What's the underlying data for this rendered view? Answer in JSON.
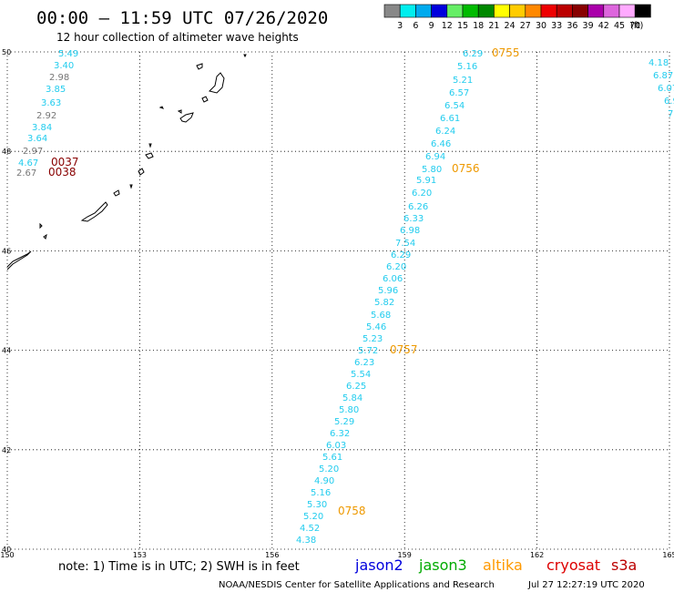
{
  "header": {
    "title": "00:00 – 11:59 UTC 07/26/2020",
    "subtitle": "12 hour collection of altimeter wave heights"
  },
  "legend": {
    "unit": "(ft)",
    "items": [
      {
        "label": "3",
        "color": "#888888"
      },
      {
        "label": "6",
        "color": "#00eeee"
      },
      {
        "label": "9",
        "color": "#00aaee"
      },
      {
        "label": "12",
        "color": "#0000dd"
      },
      {
        "label": "15",
        "color": "#66ee66"
      },
      {
        "label": "18",
        "color": "#00bb00"
      },
      {
        "label": "21",
        "color": "#008800"
      },
      {
        "label": "24",
        "color": "#ffff00"
      },
      {
        "label": "27",
        "color": "#ffcc00"
      },
      {
        "label": "30",
        "color": "#ff8800"
      },
      {
        "label": "33",
        "color": "#ee0000"
      },
      {
        "label": "36",
        "color": "#bb0000"
      },
      {
        "label": "39",
        "color": "#880000"
      },
      {
        "label": "42",
        "color": "#aa00aa"
      },
      {
        "label": "45",
        "color": "#dd66dd"
      },
      {
        "label": "70",
        "color": "#ffaaff"
      },
      {
        "label": "",
        "color": "#000000"
      }
    ]
  },
  "map": {
    "lon_range": [
      150,
      165
    ],
    "lat_range": [
      40,
      50
    ],
    "lon_ticks": [
      "150",
      "153",
      "156",
      "159",
      "162",
      "165"
    ],
    "lat_ticks": [
      "50",
      "48",
      "46",
      "44",
      "42",
      "40"
    ],
    "swh_points": [
      {
        "text": "5.49",
        "color": "#22ccee"
      },
      {
        "text": "3.40",
        "color": "#22ccee"
      },
      {
        "text": "2.98",
        "color": "#777777"
      },
      {
        "text": "3.85",
        "color": "#22ccee"
      },
      {
        "text": "3.63",
        "color": "#22ccee"
      },
      {
        "text": "2.92",
        "color": "#777777"
      },
      {
        "text": "3.84",
        "color": "#22ccee"
      },
      {
        "text": "3.64",
        "color": "#22ccee"
      },
      {
        "text": "2.97",
        "color": "#777777"
      },
      {
        "text": "4.67",
        "color": "#22ccee"
      },
      {
        "text": "2.67",
        "color": "#777777"
      },
      {
        "text": "6.29",
        "color": "#22ccee"
      },
      {
        "text": "5.16",
        "color": "#22ccee"
      },
      {
        "text": "5.21",
        "color": "#22ccee"
      },
      {
        "text": "6.57",
        "color": "#22ccee"
      },
      {
        "text": "6.54",
        "color": "#22ccee"
      },
      {
        "text": "6.61",
        "color": "#22ccee"
      },
      {
        "text": "6.24",
        "color": "#22ccee"
      },
      {
        "text": "6.46",
        "color": "#22ccee"
      },
      {
        "text": "6.94",
        "color": "#22ccee"
      },
      {
        "text": "5.80",
        "color": "#22ccee"
      },
      {
        "text": "5.91",
        "color": "#22ccee"
      },
      {
        "text": "6.20",
        "color": "#22ccee"
      },
      {
        "text": "6.26",
        "color": "#22ccee"
      },
      {
        "text": "6.33",
        "color": "#22ccee"
      },
      {
        "text": "6.98",
        "color": "#22ccee"
      },
      {
        "text": "7.54",
        "color": "#22ccee"
      },
      {
        "text": "6.29",
        "color": "#22ccee"
      },
      {
        "text": "6.20",
        "color": "#22ccee"
      },
      {
        "text": "6.06",
        "color": "#22ccee"
      },
      {
        "text": "5.96",
        "color": "#22ccee"
      },
      {
        "text": "5.82",
        "color": "#22ccee"
      },
      {
        "text": "5.68",
        "color": "#22ccee"
      },
      {
        "text": "5.46",
        "color": "#22ccee"
      },
      {
        "text": "5.23",
        "color": "#22ccee"
      },
      {
        "text": "5.72",
        "color": "#22ccee"
      },
      {
        "text": "6.23",
        "color": "#22ccee"
      },
      {
        "text": "5.54",
        "color": "#22ccee"
      },
      {
        "text": "6.25",
        "color": "#22ccee"
      },
      {
        "text": "5.84",
        "color": "#22ccee"
      },
      {
        "text": "5.80",
        "color": "#22ccee"
      },
      {
        "text": "5.29",
        "color": "#22ccee"
      },
      {
        "text": "6.32",
        "color": "#22ccee"
      },
      {
        "text": "6.03",
        "color": "#22ccee"
      },
      {
        "text": "5.61",
        "color": "#22ccee"
      },
      {
        "text": "5.20",
        "color": "#22ccee"
      },
      {
        "text": "4.90",
        "color": "#22ccee"
      },
      {
        "text": "5.16",
        "color": "#22ccee"
      },
      {
        "text": "5.30",
        "color": "#22ccee"
      },
      {
        "text": "5.20",
        "color": "#22ccee"
      },
      {
        "text": "4.52",
        "color": "#22ccee"
      },
      {
        "text": "4.38",
        "color": "#22ccee"
      },
      {
        "text": "4.18",
        "color": "#22ccee"
      },
      {
        "text": "6.87",
        "color": "#22ccee"
      },
      {
        "text": "6.07",
        "color": "#22ccee"
      },
      {
        "text": "6.9",
        "color": "#22ccee"
      },
      {
        "text": "7.4",
        "color": "#22ccee"
      },
      {
        "text": "7.",
        "color": "#22ccee"
      }
    ],
    "time_labels": [
      {
        "text": "0037",
        "color": "#880000"
      },
      {
        "text": "0038",
        "color": "#880000"
      },
      {
        "text": "0755",
        "color": "#ee9900"
      },
      {
        "text": "0756",
        "color": "#ee9900"
      },
      {
        "text": "0757",
        "color": "#ee9900"
      },
      {
        "text": "0758",
        "color": "#ee9900"
      }
    ]
  },
  "footer": {
    "note": "note: 1) Time is in UTC; 2) SWH is in feet",
    "satellites": [
      {
        "name": "jason2",
        "color": "#0000dd"
      },
      {
        "name": "jason3",
        "color": "#00aa00"
      },
      {
        "name": "altika",
        "color": "#ff9900"
      },
      {
        "name": "cryosat",
        "color": "#dd0000"
      },
      {
        "name": "s3a",
        "color": "#bb0000"
      }
    ],
    "credit": "NOAA/NESDIS Center for Satellite Applications and Research",
    "timestamp": "Jul 27 12:27:19 UTC 2020"
  }
}
